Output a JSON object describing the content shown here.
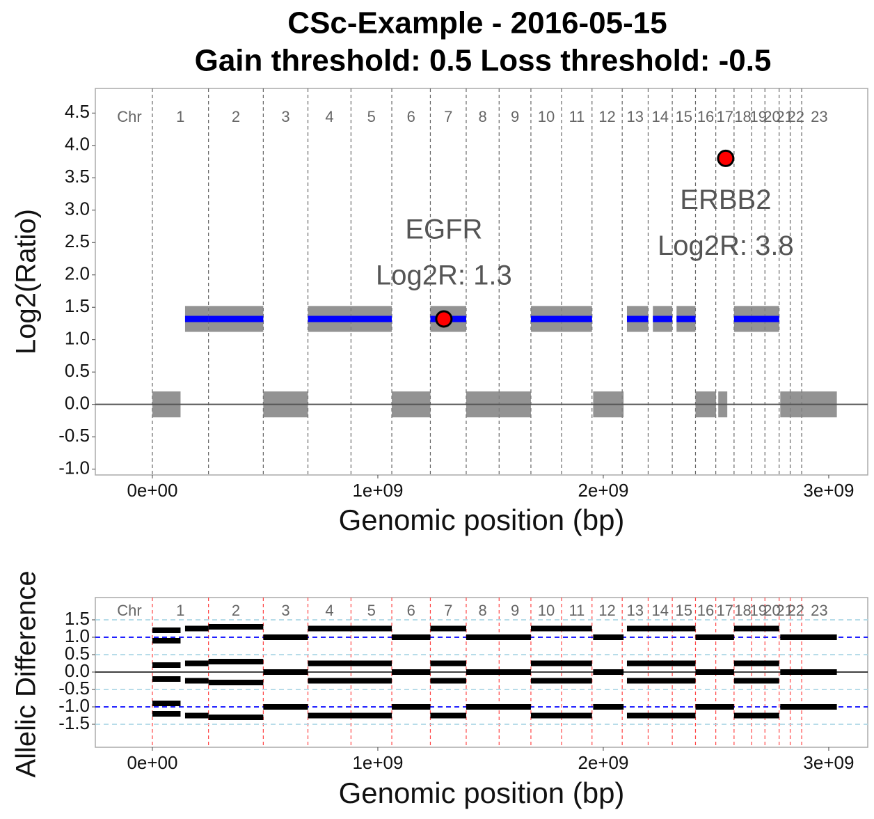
{
  "chart_data": [
    {
      "type": "cnv",
      "title": "CSc-Example - 2016-05-15",
      "subtitle": "Gain threshold:  0.5  Loss threshold: -0.5",
      "ylabel": "Log2(Ratio)",
      "xlabel": "Genomic position (bp)",
      "chromosome_label": "Chr",
      "chromosomes": [
        "1",
        "2",
        "3",
        "4",
        "5",
        "6",
        "7",
        "8",
        "9",
        "10",
        "11",
        "12",
        "13",
        "14",
        "15",
        "16",
        "17",
        "18",
        "19",
        "20",
        "21",
        "22",
        "23"
      ],
      "chromosome_bounds": [
        0,
        249000000,
        492000000,
        690000000,
        881000000,
        1062000000,
        1233000000,
        1392000000,
        1538000000,
        1679000000,
        1815000000,
        1950000000,
        2084000000,
        2199000000,
        2306000000,
        2409000000,
        2499000000,
        2580000000,
        2658000000,
        2717000000,
        2780000000,
        2829000000,
        2880000000,
        3036000000
      ],
      "xlim": [
        -253000000,
        3173000000
      ],
      "ylim": [
        -1.09,
        4.88
      ],
      "xticks": [
        {
          "value": 0,
          "label": "0e+00"
        },
        {
          "value": 1000000000,
          "label": "1e+09"
        },
        {
          "value": 2000000000,
          "label": "2e+09"
        },
        {
          "value": 3000000000,
          "label": "3e+09"
        }
      ],
      "yticks": [
        {
          "value": -1,
          "label": "-1.0"
        },
        -0.5,
        {
          "value": 0,
          "label": "0.0"
        },
        0.5,
        {
          "value": 1,
          "label": "1.0"
        },
        1.5,
        {
          "value": 2,
          "label": "2.0"
        },
        2.5,
        {
          "value": 3,
          "label": "3.0"
        },
        3.5,
        {
          "value": 4,
          "label": "4.0"
        },
        4.5
      ],
      "gain_threshold": 0.5,
      "segment_color": "#0000ff",
      "point_color": "#808080",
      "segments": [
        {
          "start": 0,
          "end": 125000000,
          "value": 0
        },
        {
          "start": 145000000,
          "end": 249000000,
          "value": 1.32
        },
        {
          "start": 249000000,
          "end": 492000000,
          "value": 1.32
        },
        {
          "start": 492000000,
          "end": 690000000,
          "value": 0
        },
        {
          "start": 690000000,
          "end": 881000000,
          "value": 1.32
        },
        {
          "start": 881000000,
          "end": 1062000000,
          "value": 1.32
        },
        {
          "start": 1062000000,
          "end": 1233000000,
          "value": 0
        },
        {
          "start": 1233000000,
          "end": 1392000000,
          "value": 1.32
        },
        {
          "start": 1392000000,
          "end": 1679000000,
          "value": 0
        },
        {
          "start": 1679000000,
          "end": 1950000000,
          "value": 1.32
        },
        {
          "start": 1955000000,
          "end": 2090000000,
          "value": 0
        },
        {
          "start": 2105000000,
          "end": 2199000000,
          "value": 1.32
        },
        {
          "start": 2220000000,
          "end": 2306000000,
          "value": 1.32
        },
        {
          "start": 2325000000,
          "end": 2409000000,
          "value": 1.32
        },
        {
          "start": 2409000000,
          "end": 2500000000,
          "value": 0
        },
        {
          "start": 2510000000,
          "end": 2550000000,
          "value": 0
        },
        {
          "start": 2580000000,
          "end": 2780000000,
          "value": 1.32
        },
        {
          "start": 2785000000,
          "end": 3036000000,
          "value": 0
        }
      ],
      "annotations": [
        {
          "label": "EGFR",
          "value_label": "Log2R: 1.3",
          "x": 1293000000,
          "y": 1.32,
          "color": "#ff0000"
        },
        {
          "label": "ERBB2",
          "value_label": "Log2R: 3.8",
          "x": 2543000000,
          "y": 3.8,
          "color": "#ff0000"
        }
      ]
    },
    {
      "type": "allelic",
      "ylabel": "Allelic Difference",
      "xlabel": "Genomic position (bp)",
      "chromosome_label": "Chr",
      "chromosomes": [
        "1",
        "2",
        "3",
        "4",
        "5",
        "6",
        "7",
        "8",
        "9",
        "10",
        "11",
        "12",
        "13",
        "14",
        "15",
        "16",
        "17",
        "18",
        "19",
        "20",
        "21",
        "22",
        "23"
      ],
      "chromosome_bounds": [
        0,
        249000000,
        492000000,
        690000000,
        881000000,
        1062000000,
        1233000000,
        1392000000,
        1538000000,
        1679000000,
        1815000000,
        1950000000,
        2084000000,
        2199000000,
        2306000000,
        2409000000,
        2499000000,
        2580000000,
        2658000000,
        2717000000,
        2780000000,
        2829000000,
        2880000000,
        3036000000
      ],
      "xlim": [
        -253000000,
        3173000000
      ],
      "ylim": [
        -2.16,
        2.14
      ],
      "xticks": [
        {
          "value": 0,
          "label": "0e+00"
        },
        {
          "value": 1000000000,
          "label": "1e+09"
        },
        {
          "value": 2000000000,
          "label": "2e+09"
        },
        {
          "value": 3000000000,
          "label": "3e+09"
        }
      ],
      "yticks": [
        -1.5,
        {
          "value": -1,
          "label": "-1.0"
        },
        -0.5,
        {
          "value": 0,
          "label": "0.0"
        },
        0.5,
        {
          "value": 1,
          "label": "1.0"
        },
        1.5
      ],
      "reference_lines": [
        {
          "value": 1.5,
          "color": "#add8e6"
        },
        {
          "value": 1,
          "color": "#0000ff"
        },
        {
          "value": 0.5,
          "color": "#add8e6"
        },
        {
          "value": -0.5,
          "color": "#add8e6"
        },
        {
          "value": -1,
          "color": "#0000ff"
        },
        {
          "value": -1.5,
          "color": "#add8e6"
        }
      ],
      "point_color": "#000000",
      "segments": [
        {
          "start": 0,
          "end": 125000000,
          "levels": [
            1.2,
            0.9,
            0.2,
            -0.2,
            -0.9,
            -1.2
          ]
        },
        {
          "start": 145000000,
          "end": 249000000,
          "levels": [
            1.25,
            0.25,
            -0.25,
            -1.25
          ]
        },
        {
          "start": 249000000,
          "end": 492000000,
          "levels": [
            1.3,
            0.3,
            -0.3,
            -1.3
          ]
        },
        {
          "start": 492000000,
          "end": 690000000,
          "levels": [
            1.0,
            0.0,
            -1.0
          ]
        },
        {
          "start": 690000000,
          "end": 1062000000,
          "levels": [
            1.25,
            0.25,
            -0.25,
            -1.25
          ]
        },
        {
          "start": 1062000000,
          "end": 1233000000,
          "levels": [
            1.0,
            0.0,
            -1.0
          ]
        },
        {
          "start": 1233000000,
          "end": 1392000000,
          "levels": [
            1.25,
            0.25,
            -0.25,
            -1.25
          ]
        },
        {
          "start": 1392000000,
          "end": 1679000000,
          "levels": [
            1.0,
            0.0,
            -1.0
          ]
        },
        {
          "start": 1679000000,
          "end": 1950000000,
          "levels": [
            1.25,
            0.25,
            -0.25,
            -1.25
          ]
        },
        {
          "start": 1955000000,
          "end": 2090000000,
          "levels": [
            1.0,
            0.0,
            -1.0
          ]
        },
        {
          "start": 2105000000,
          "end": 2409000000,
          "levels": [
            1.25,
            0.25,
            -0.25,
            -1.25
          ]
        },
        {
          "start": 2409000000,
          "end": 2580000000,
          "levels": [
            1.0,
            0.0,
            -1.0
          ]
        },
        {
          "start": 2580000000,
          "end": 2780000000,
          "levels": [
            1.25,
            0.25,
            -0.25,
            -1.25
          ]
        },
        {
          "start": 2785000000,
          "end": 3036000000,
          "levels": [
            1.0,
            0.0,
            -1.0
          ]
        }
      ]
    }
  ]
}
